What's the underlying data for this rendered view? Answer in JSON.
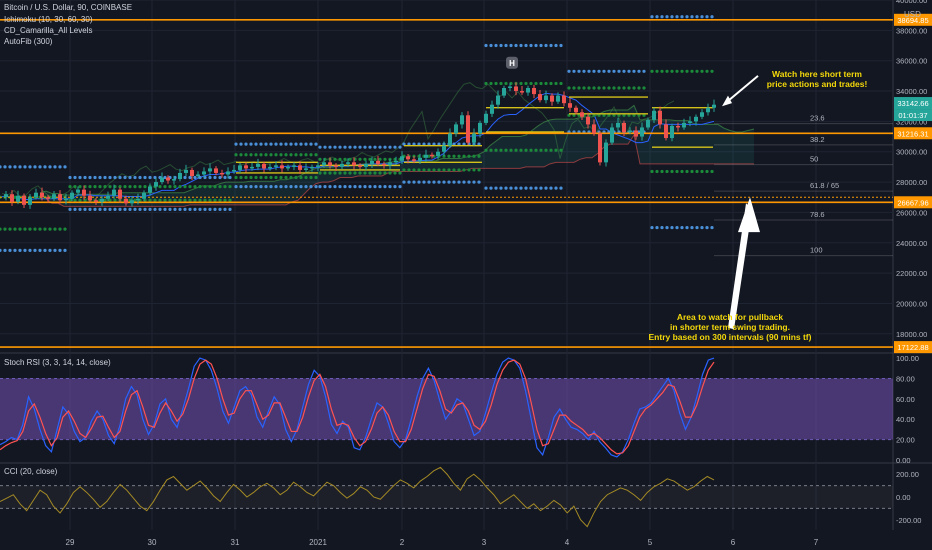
{
  "chart_data": [
    {
      "type": "candlestick",
      "title": "Bitcoin / U.S. Dollar, 90, COINBASE",
      "indicators": [
        "Ichimoku (10, 30, 60, 30)",
        "CD_Camarilla_All Levels",
        "AutoFib (300)"
      ],
      "currency_label": "USD",
      "y_ticks": [
        40000.0,
        38000.0,
        36000.0,
        34000.0,
        32000.0,
        30000.0,
        28000.0,
        26000.0,
        24000.0,
        22000.0,
        20000.0,
        18000.0
      ],
      "ylim": [
        16800,
        40000
      ],
      "x_ticks": [
        "29",
        "30",
        "31",
        "2021",
        "2",
        "3",
        "4",
        "5",
        "6",
        "7"
      ],
      "price_labels": [
        {
          "value": 38694.85,
          "color": "#ff9800"
        },
        {
          "value": 33142.66,
          "color": "#26a69a"
        },
        {
          "value": "01:01:37",
          "color": "#26a69a"
        },
        {
          "value": 31216.31,
          "color": "#ff9800"
        },
        {
          "value": 26667.96,
          "color": "#ff9800"
        },
        {
          "value": 17122.88,
          "color": "#ff9800"
        }
      ],
      "horizontal_levels": [
        38694.85,
        31216.31,
        26667.96,
        17122.88
      ],
      "fib_levels": [
        {
          "label": "23.6",
          "value": 31850
        },
        {
          "label": "38.2",
          "value": 30450
        },
        {
          "label": "50",
          "value": 29150
        },
        {
          "label": "61.8 / 65",
          "value": 27400
        },
        {
          "label": "78.6",
          "value": 25500
        },
        {
          "label": "100",
          "value": 23150
        }
      ],
      "price_path": [
        [
          0,
          27000
        ],
        [
          6,
          27200
        ],
        [
          12,
          26700
        ],
        [
          18,
          27100
        ],
        [
          24,
          26500
        ],
        [
          30,
          27000
        ],
        [
          36,
          27300
        ],
        [
          42,
          27000
        ],
        [
          48,
          26900
        ],
        [
          54,
          27200
        ],
        [
          60,
          26800
        ],
        [
          66,
          26900
        ],
        [
          72,
          27300
        ],
        [
          78,
          27500
        ],
        [
          84,
          27100
        ],
        [
          90,
          26800
        ],
        [
          96,
          26700
        ],
        [
          102,
          26900
        ],
        [
          108,
          27100
        ],
        [
          114,
          27500
        ],
        [
          120,
          26900
        ],
        [
          126,
          26600
        ],
        [
          132,
          26800
        ],
        [
          138,
          26900
        ],
        [
          144,
          27300
        ],
        [
          150,
          27700
        ],
        [
          156,
          28000
        ],
        [
          162,
          28300
        ],
        [
          168,
          28100
        ],
        [
          174,
          28200
        ],
        [
          180,
          28600
        ],
        [
          186,
          28800
        ],
        [
          192,
          28400
        ],
        [
          198,
          28500
        ],
        [
          204,
          28700
        ],
        [
          210,
          28900
        ],
        [
          216,
          28600
        ],
        [
          222,
          28500
        ],
        [
          228,
          28700
        ],
        [
          234,
          28800
        ],
        [
          240,
          29100
        ],
        [
          246,
          28900
        ],
        [
          252,
          29000
        ],
        [
          258,
          29200
        ],
        [
          264,
          28900
        ],
        [
          270,
          29000
        ],
        [
          276,
          29100
        ],
        [
          282,
          28900
        ],
        [
          288,
          29000
        ],
        [
          294,
          29100
        ],
        [
          300,
          28800
        ],
        [
          306,
          28900
        ],
        [
          312,
          29000
        ],
        [
          318,
          29100
        ],
        [
          324,
          29300
        ],
        [
          330,
          29100
        ],
        [
          336,
          29000
        ],
        [
          342,
          29200
        ],
        [
          348,
          29300
        ],
        [
          354,
          29100
        ],
        [
          360,
          29000
        ],
        [
          366,
          29200
        ],
        [
          372,
          29400
        ],
        [
          378,
          29200
        ],
        [
          384,
          29100
        ],
        [
          390,
          29300
        ],
        [
          396,
          29400
        ],
        [
          402,
          29700
        ],
        [
          408,
          29500
        ],
        [
          414,
          29400
        ],
        [
          420,
          29600
        ],
        [
          426,
          29800
        ],
        [
          432,
          29700
        ],
        [
          438,
          30000
        ],
        [
          444,
          30400
        ],
        [
          450,
          31200
        ],
        [
          456,
          31800
        ],
        [
          462,
          32400
        ],
        [
          468,
          30600
        ],
        [
          474,
          31200
        ],
        [
          480,
          31900
        ],
        [
          486,
          32500
        ],
        [
          492,
          33100
        ],
        [
          498,
          33700
        ],
        [
          504,
          34200
        ],
        [
          510,
          34300
        ],
        [
          516,
          34000
        ],
        [
          522,
          33900
        ],
        [
          528,
          34200
        ],
        [
          534,
          33800
        ],
        [
          540,
          33400
        ],
        [
          546,
          33700
        ],
        [
          552,
          33300
        ],
        [
          558,
          33700
        ],
        [
          564,
          33200
        ],
        [
          570,
          32900
        ],
        [
          576,
          32600
        ],
        [
          582,
          32300
        ],
        [
          588,
          31800
        ],
        [
          594,
          31200
        ],
        [
          600,
          29300
        ],
        [
          606,
          30600
        ],
        [
          612,
          31600
        ],
        [
          618,
          31900
        ],
        [
          624,
          31300
        ],
        [
          630,
          31400
        ],
        [
          636,
          31000
        ],
        [
          642,
          31600
        ],
        [
          648,
          32100
        ],
        [
          654,
          32700
        ],
        [
          660,
          31800
        ],
        [
          666,
          30900
        ],
        [
          672,
          31700
        ],
        [
          678,
          31600
        ],
        [
          684,
          31900
        ],
        [
          690,
          32000
        ],
        [
          696,
          32300
        ],
        [
          702,
          32600
        ],
        [
          708,
          32900
        ],
        [
          714,
          33100
        ]
      ]
    },
    {
      "type": "line",
      "title": "Stoch RSI (3, 3, 14, 14, close)",
      "y_ticks": [
        100.0,
        80.0,
        60.0,
        40.0,
        20.0,
        0.0
      ],
      "ylim": [
        -2,
        103
      ],
      "series": [
        {
          "color": "#2962ff",
          "values": [
            15,
            18,
            22,
            20,
            35,
            62,
            50,
            30,
            14,
            8,
            30,
            52,
            45,
            28,
            18,
            22,
            38,
            48,
            40,
            24,
            16,
            34,
            60,
            72,
            64,
            40,
            25,
            35,
            55,
            60,
            40,
            32,
            50,
            70,
            92,
            100,
            98,
            88,
            70,
            48,
            36,
            52,
            68,
            72,
            64,
            42,
            32,
            48,
            62,
            54,
            30,
            18,
            30,
            52,
            74,
            88,
            82,
            62,
            35,
            26,
            38,
            32,
            12,
            10,
            22,
            40,
            56,
            52,
            36,
            18,
            12,
            20,
            40,
            62,
            80,
            90,
            78,
            58,
            40,
            48,
            60,
            56,
            40,
            24,
            28,
            46,
            66,
            84,
            96,
            100,
            98,
            90,
            68,
            40,
            12,
            5,
            22,
            42,
            50,
            40,
            32,
            30,
            26,
            20,
            28,
            18,
            12,
            5,
            3,
            8,
            20,
            36,
            50,
            52,
            56,
            64,
            72,
            80,
            68,
            46,
            30,
            42,
            62,
            84,
            98,
            100
          ]
        },
        {
          "color": "#ff5252",
          "values": [
            10,
            14,
            17,
            19,
            28,
            48,
            55,
            42,
            26,
            14,
            22,
            42,
            48,
            38,
            26,
            22,
            31,
            42,
            43,
            32,
            22,
            28,
            48,
            64,
            68,
            52,
            34,
            32,
            46,
            56,
            48,
            38,
            45,
            60,
            80,
            94,
            98,
            94,
            80,
            60,
            44,
            46,
            60,
            68,
            68,
            54,
            40,
            44,
            56,
            56,
            42,
            28,
            28,
            42,
            62,
            78,
            84,
            72,
            50,
            34,
            36,
            34,
            22,
            14,
            18,
            30,
            46,
            52,
            44,
            28,
            18,
            18,
            30,
            50,
            70,
            84,
            82,
            68,
            50,
            46,
            54,
            56,
            48,
            34,
            30,
            38,
            54,
            74,
            88,
            96,
            98,
            94,
            80,
            56,
            30,
            14,
            16,
            30,
            44,
            44,
            38,
            34,
            30,
            24,
            26,
            22,
            16,
            10,
            6,
            7,
            14,
            28,
            42,
            50,
            54,
            60,
            66,
            74,
            72,
            58,
            42,
            42,
            54,
            72,
            88,
            96
          ]
        }
      ],
      "band": [
        20,
        80
      ]
    },
    {
      "type": "line",
      "title": "CCI (20, close)",
      "y_ticks": [
        200.0,
        0.0,
        -200.0
      ],
      "ylim": [
        -290,
        290
      ],
      "series": [
        {
          "color": "#a48a25",
          "values": [
            -40,
            -10,
            20,
            -60,
            -120,
            -30,
            60,
            20,
            -80,
            -140,
            -60,
            40,
            90,
            40,
            -20,
            -90,
            -40,
            40,
            110,
            60,
            -10,
            -80,
            -120,
            -40,
            60,
            150,
            180,
            120,
            60,
            100,
            140,
            80,
            10,
            -40,
            40,
            110,
            60,
            0,
            40,
            90,
            120,
            80,
            20,
            60,
            130,
            90,
            40,
            10,
            70,
            130,
            100,
            40,
            -10,
            30,
            90,
            60,
            0,
            -20,
            40,
            100,
            150,
            120,
            80,
            140,
            180,
            230,
            260,
            200,
            120,
            60,
            160,
            200,
            150,
            80,
            20,
            -60,
            -20,
            20,
            -40,
            -100,
            -60,
            -120,
            -80,
            -30,
            -70,
            -140,
            -80,
            -200,
            -260,
            -140,
            -40,
            20,
            50,
            80,
            60,
            20,
            -30,
            40,
            90,
            120,
            160,
            140,
            100,
            60,
            90,
            140,
            180,
            150
          ]
        }
      ],
      "levels": [
        100,
        -100
      ]
    }
  ],
  "annotations": [
    {
      "id": "short_term_note",
      "lines": [
        "Watch here short term",
        "price actions and trades!"
      ]
    },
    {
      "id": "pullback_note",
      "lines": [
        "Area to watch for pullback",
        "in shorter term swing trading.",
        "Entry based on 300 intervals (90 mins tf)"
      ]
    },
    {
      "id": "h_marker",
      "lines": [
        "H"
      ]
    }
  ],
  "colors": {
    "background": "#131722",
    "bull": "#26a69a",
    "bear": "#ef5350",
    "level": "#ff9800",
    "annotation": "#f5d90a",
    "camarilla_blue": "#4a90d9",
    "camarilla_green": "#1b8a3a"
  }
}
